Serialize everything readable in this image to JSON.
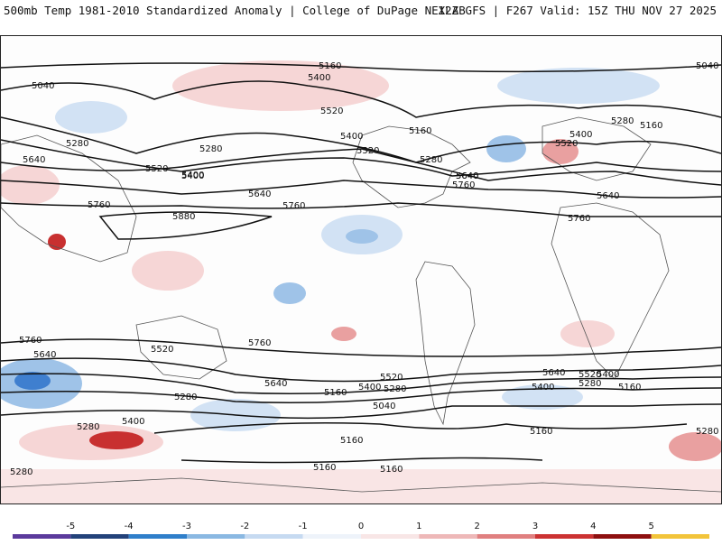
{
  "header": {
    "title_left": "500mb Temp 1981-2010 Standardized Anomaly | College of DuPage NEXLAB",
    "title_right": "12Z GFS | F267 Valid: 15Z THU NOV 27 2025"
  },
  "map": {
    "contour_labels": [
      "5160",
      "5040",
      "5400",
      "5520",
      "5280",
      "5400",
      "5160",
      "5280",
      "5640",
      "5520",
      "5400",
      "5520",
      "5280",
      "5640",
      "5760",
      "5160",
      "5280",
      "5040",
      "5640",
      "5400",
      "5520",
      "5400",
      "5760",
      "5880",
      "5760",
      "5640",
      "5640",
      "5760",
      "5760",
      "5640",
      "5520",
      "5760",
      "5520",
      "5640",
      "5400",
      "5280",
      "5640",
      "5400",
      "5280",
      "5520",
      "5160",
      "5400",
      "5280",
      "5040",
      "5280",
      "5160",
      "5400",
      "5160",
      "5280",
      "5160",
      "5160",
      "5280",
      "5160"
    ],
    "colors": {
      "land_border": "#555555",
      "contour": "#111111",
      "warm_light": "#f6d6d6",
      "warm_med": "#e9a0a0",
      "warm_strong": "#c83030",
      "cool_light": "#d2e2f4",
      "cool_med": "#9fc3e8",
      "cool_strong": "#3f7fcf"
    }
  },
  "colorbar": {
    "ticks": [
      "-5",
      "-4",
      "-3",
      "-2",
      "-1",
      "0",
      "1",
      "2",
      "3",
      "4",
      "5"
    ],
    "colors": [
      "#5b3a9c",
      "#23427a",
      "#2f7fca",
      "#8ab8e2",
      "#c6daf1",
      "#eef3fa",
      "#f8e6e6",
      "#eeb8b8",
      "#e08080",
      "#cc3333",
      "#8e1010",
      "#f2c43a"
    ]
  }
}
